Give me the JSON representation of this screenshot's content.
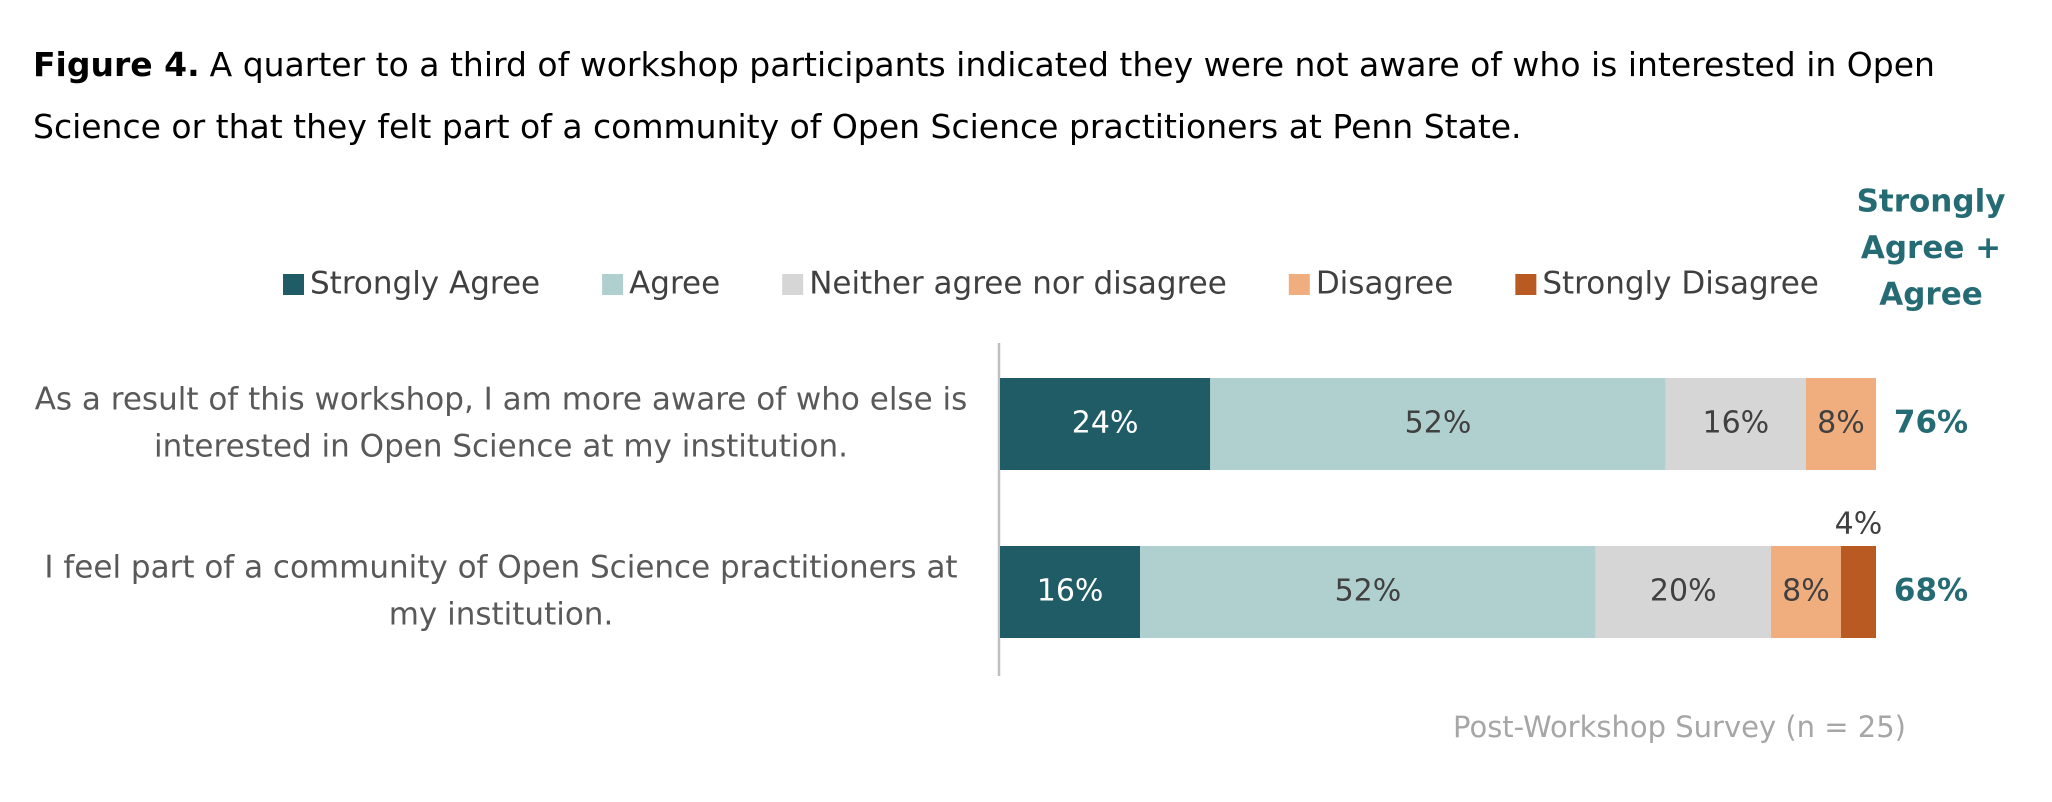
{
  "chart_data": {
    "type": "stacked-bar-horizontal",
    "title_prefix": "Figure 4.",
    "title": "A quarter to a third of workshop participants indicated they were not aware of who is interested in Open Science or that they felt part of a community of Open Science practitioners at Penn State.",
    "categories": [
      "As a result of this workshop, I am more aware of who else is interested in Open Science at my institution.",
      "I feel part of a community of Open Science practitioners at my institution."
    ],
    "xlim": [
      0,
      100
    ],
    "series": [
      {
        "name": "Strongly Agree",
        "color": "#1f5c66",
        "values": [
          24,
          16
        ],
        "value_labels": [
          "24%",
          "16%"
        ]
      },
      {
        "name": "Agree",
        "color": "#b0d0cf",
        "values": [
          52,
          52
        ],
        "value_labels": [
          "52%",
          "52%"
        ]
      },
      {
        "name": "Neither agree nor disagree",
        "color": "#d6d6d6",
        "values": [
          16,
          20
        ],
        "value_labels": [
          "16%",
          "20%"
        ]
      },
      {
        "name": "Disagree",
        "color": "#f0ae7e",
        "values": [
          8,
          8
        ],
        "value_labels": [
          "8%",
          "8%"
        ]
      },
      {
        "name": "Strongly Disagree",
        "color": "#b85a22",
        "values": [
          0,
          4
        ],
        "value_labels": [
          null,
          "4%"
        ]
      }
    ],
    "totals": {
      "title_lines": [
        "Strongly",
        "Agree +",
        "Agree"
      ],
      "color": "#256b74",
      "values": [
        76,
        68
      ],
      "value_labels": [
        "76%",
        "68%"
      ]
    },
    "note": "Post-Workshop Survey (n = 25)"
  }
}
